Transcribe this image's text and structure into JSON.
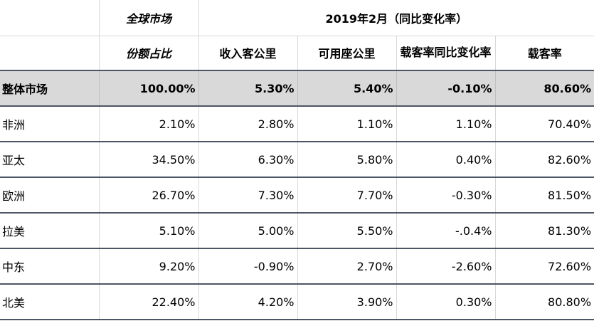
{
  "header": {
    "market_share_group": "全球市场",
    "period_group": "2019年2月（同比变化率）",
    "columns": [
      "份额占比",
      "收入客公里",
      "可用座公里",
      "载客率同比变化率",
      "载客率"
    ]
  },
  "total": {
    "region": "整体市场",
    "share": "100.00%",
    "rpk": "5.30%",
    "ask": "5.40%",
    "plf_change": "-0.10%",
    "plf": "80.60%"
  },
  "rows": [
    {
      "region": "非洲",
      "share": "2.10%",
      "rpk": "2.80%",
      "ask": "1.10%",
      "plf_change": "1.10%",
      "plf": "70.40%"
    },
    {
      "region": "亚太",
      "share": "34.50%",
      "rpk": "6.30%",
      "ask": "5.80%",
      "plf_change": "0.40%",
      "plf": "82.60%"
    },
    {
      "region": "欧洲",
      "share": "26.70%",
      "rpk": "7.30%",
      "ask": "7.70%",
      "plf_change": "-0.30%",
      "plf": "81.50%"
    },
    {
      "region": "拉美",
      "share": "5.10%",
      "rpk": "5.00%",
      "ask": "5.50%",
      "plf_change": "-.0.4%",
      "plf": "81.30%"
    },
    {
      "region": "中东",
      "share": "9.20%",
      "rpk": "-0.90%",
      "ask": "2.70%",
      "plf_change": "-2.60%",
      "plf": "72.60%"
    },
    {
      "region": "北美",
      "share": "22.40%",
      "rpk": "4.20%",
      "ask": "3.90%",
      "plf_change": "0.30%",
      "plf": "80.80%"
    }
  ]
}
